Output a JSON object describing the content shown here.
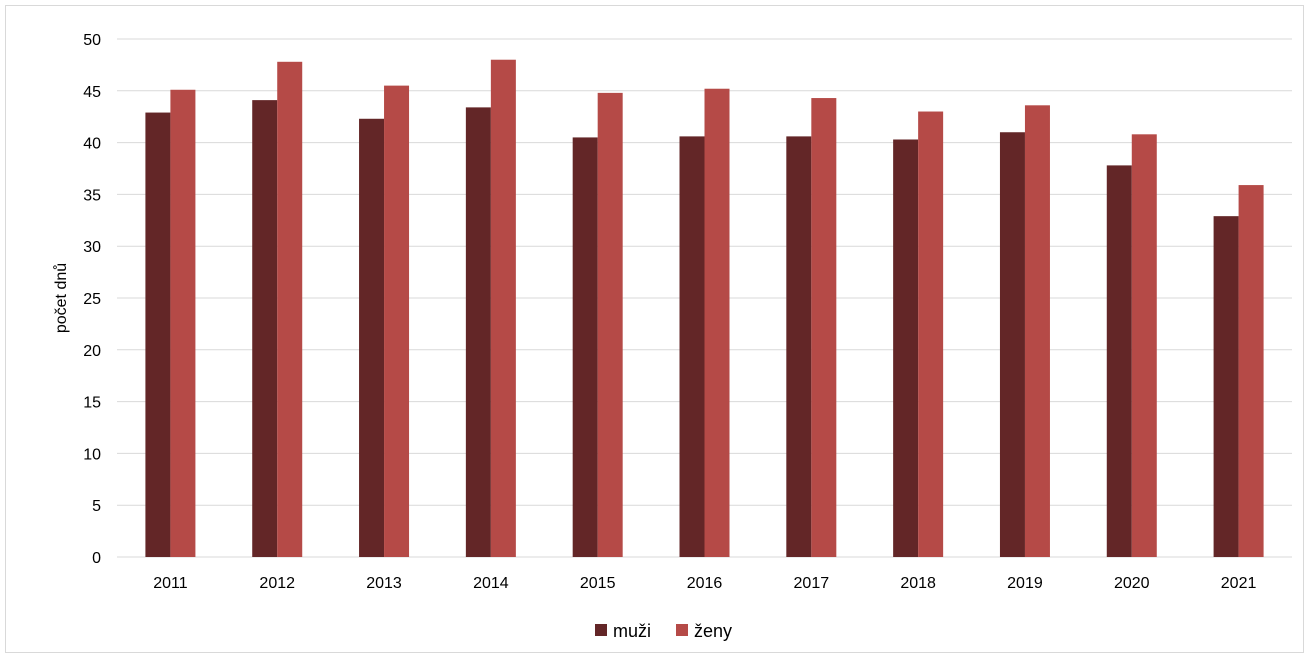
{
  "chart_data": {
    "type": "bar",
    "title": "",
    "xlabel": "",
    "ylabel": "počet dnů",
    "ylim": [
      0,
      50
    ],
    "yticks": [
      0,
      5,
      10,
      15,
      20,
      25,
      30,
      35,
      40,
      45,
      50
    ],
    "grid": true,
    "legend_position": "bottom",
    "categories": [
      "2011",
      "2012",
      "2013",
      "2014",
      "2015",
      "2016",
      "2017",
      "2018",
      "2019",
      "2020",
      "2021"
    ],
    "series": [
      {
        "name": "muži",
        "color": "#632627",
        "values": [
          42.9,
          44.1,
          42.3,
          43.4,
          40.5,
          40.6,
          40.6,
          40.3,
          41.0,
          37.8,
          32.9
        ]
      },
      {
        "name": "ženy",
        "color": "#b54a47",
        "values": [
          45.1,
          47.8,
          45.5,
          48.0,
          44.8,
          45.2,
          44.3,
          43.0,
          43.6,
          40.8,
          35.9
        ]
      }
    ]
  }
}
